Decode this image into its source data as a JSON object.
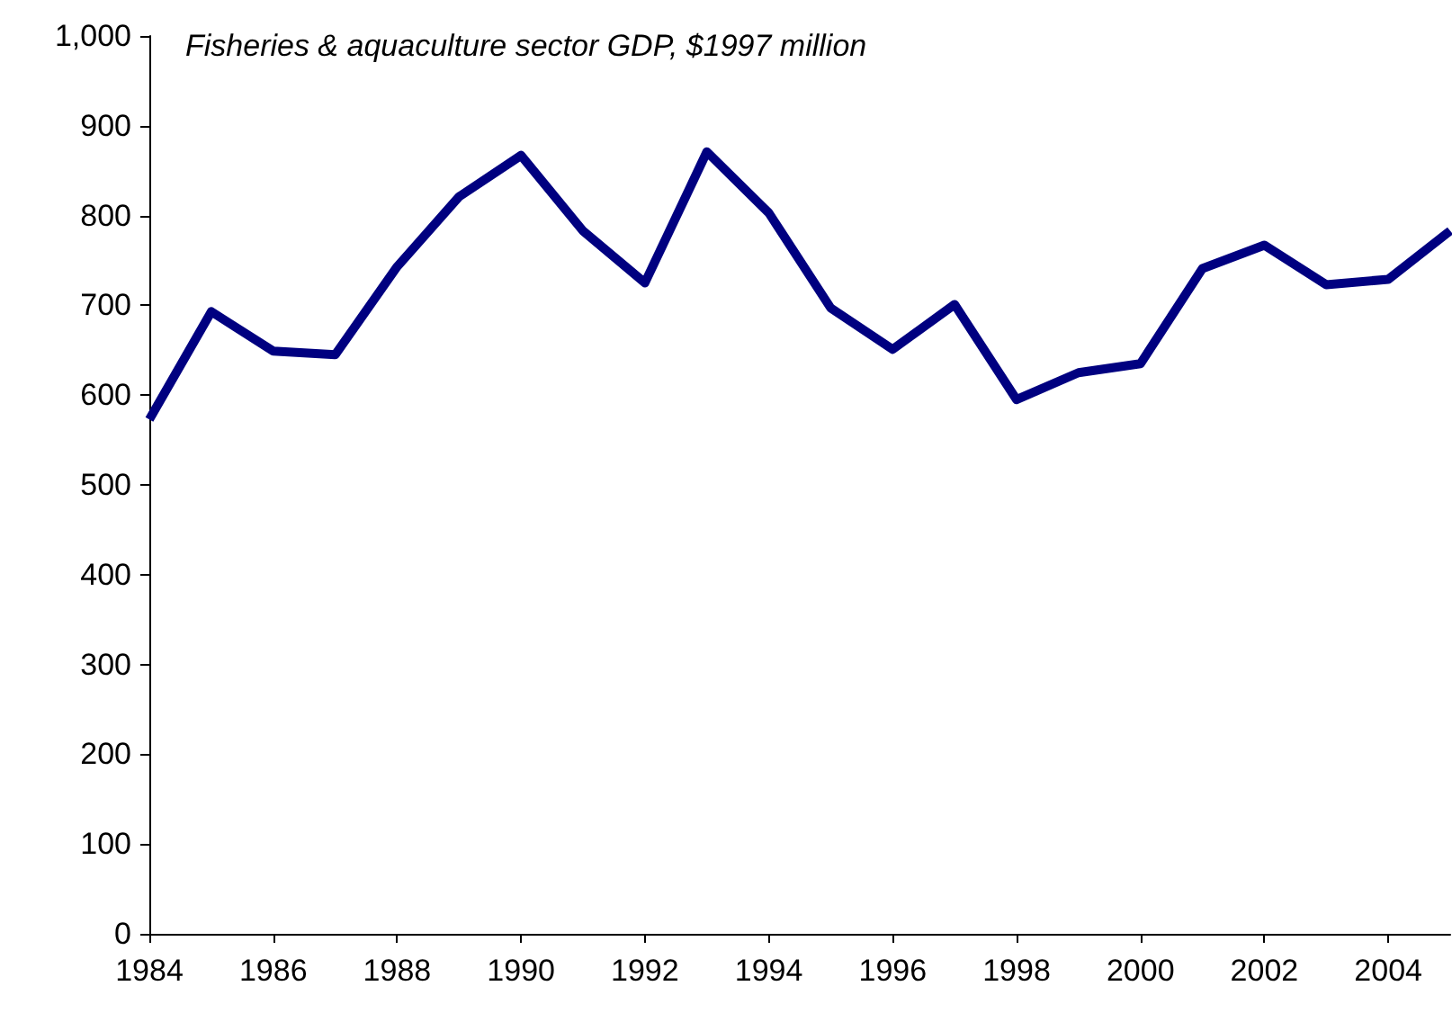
{
  "chart_data": {
    "type": "line",
    "title": "Fisheries & aquaculture sector GDP, $1997 million",
    "x": [
      1984,
      1985,
      1986,
      1987,
      1988,
      1989,
      1990,
      1991,
      1992,
      1993,
      1994,
      1995,
      1996,
      1997,
      1998,
      1999,
      2000,
      2001,
      2002,
      2003,
      2004,
      2005
    ],
    "series": [
      {
        "color": "#000080",
        "values": [
          573,
          693,
          649,
          645,
          743,
          821,
          867,
          783,
          725,
          871,
          803,
          697,
          651,
          701,
          595,
          625,
          635,
          741,
          767,
          723,
          729,
          783
        ]
      }
    ],
    "xlim": [
      1984,
      2005
    ],
    "xticks": [
      1984,
      1986,
      1988,
      1990,
      1992,
      1994,
      1996,
      1998,
      2000,
      2002,
      2004
    ],
    "ylim": [
      0,
      1000
    ],
    "yticks": [
      0,
      100,
      200,
      300,
      400,
      500,
      600,
      700,
      800,
      900,
      {
        "value": 1000,
        "label": "1,000"
      }
    ],
    "marker": "none",
    "line_style": "solid"
  }
}
